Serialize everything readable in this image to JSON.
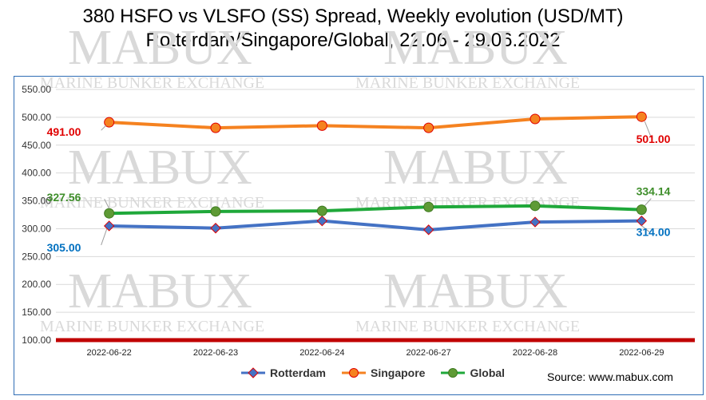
{
  "title_line1": "380 HSFO vs VLSFO (SS) Spread, Weekly evolution (USD/MT)",
  "title_line2": "Rotterdam/Singapore/Global, 22.06 - 29.06.2022",
  "source": "Source: www.mabux.com",
  "watermark": {
    "brand": "MABUX",
    "tagline": "MARINE BUNKER EXCHANGE"
  },
  "chart_data": {
    "type": "line",
    "title": "380 HSFO vs VLSFO (SS) Spread, Weekly evolution (USD/MT) Rotterdam/Singapore/Global, 22.06 - 29.06.2022",
    "xlabel": "",
    "ylabel": "",
    "ylim": [
      100,
      550
    ],
    "yticks": [
      "100.00",
      "150.00",
      "200.00",
      "250.00",
      "300.00",
      "350.00",
      "400.00",
      "450.00",
      "500.00",
      "550.00"
    ],
    "categories": [
      "2022-06-22",
      "2022-06-23",
      "2022-06-24",
      "2022-06-27",
      "2022-06-28",
      "2022-06-29"
    ],
    "grid": true,
    "legend": "bottom",
    "reference_line": {
      "value": 100,
      "color": "#c00000"
    },
    "series": [
      {
        "name": "Rotterdam",
        "color": "#4472c4",
        "marker": "diamond",
        "marker_color": "#4472c4",
        "marker_edge": "#e00000",
        "values": [
          305,
          301,
          314,
          298,
          312,
          314
        ],
        "labels": [
          {
            "index": 0,
            "text": "305.00"
          },
          {
            "index": 5,
            "text": "314.00"
          }
        ],
        "label_color": "#0070c0"
      },
      {
        "name": "Singapore",
        "color": "#f58220",
        "marker": "circle",
        "marker_color": "#f58220",
        "marker_edge": "#e00000",
        "values": [
          491,
          481,
          485,
          481,
          497,
          501
        ],
        "labels": [
          {
            "index": 0,
            "text": "491.00"
          },
          {
            "index": 5,
            "text": "501.00"
          }
        ],
        "label_color": "#e00000"
      },
      {
        "name": "Global",
        "color": "#1fa83a",
        "marker": "circle",
        "marker_color": "#5e9a35",
        "marker_edge": "#3e7a20",
        "values": [
          327.56,
          331,
          332,
          339,
          341,
          334.14
        ],
        "labels": [
          {
            "index": 0,
            "text": "327.56"
          },
          {
            "index": 5,
            "text": "334.14"
          }
        ],
        "label_color": "#3e8e2a"
      }
    ]
  }
}
